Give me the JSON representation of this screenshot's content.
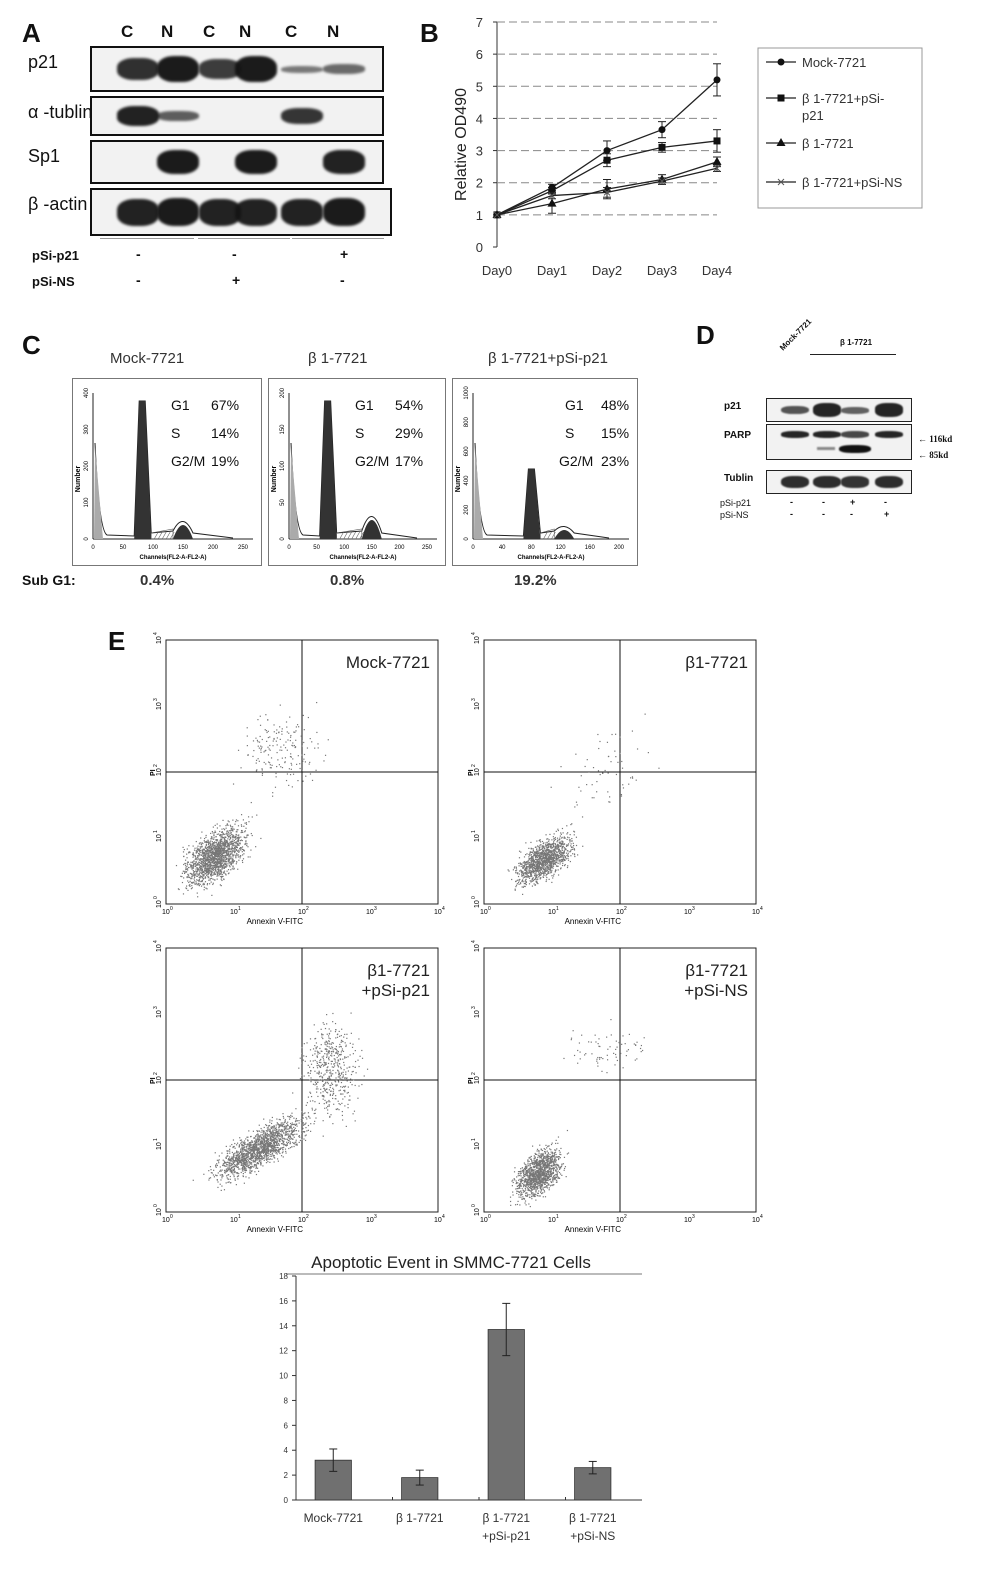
{
  "panelA": {
    "letter": "A",
    "lanes": [
      "C",
      "N",
      "C",
      "N",
      "C",
      "N"
    ],
    "rows": [
      {
        "label": "p21",
        "bands": [
          0.8,
          0.95,
          0.7,
          0.95,
          0.25,
          0.35
        ]
      },
      {
        "label": "α -tublin",
        "bands": [
          0.9,
          0.45,
          0,
          0,
          0.75,
          0
        ]
      },
      {
        "label": "Sp1",
        "bands": [
          0,
          0.95,
          0,
          0.95,
          0,
          0.9
        ]
      },
      {
        "label": "β -actin",
        "bands": [
          0.9,
          0.95,
          0.9,
          0.9,
          0.9,
          0.95
        ]
      }
    ],
    "treatments": [
      {
        "label": "pSi-p21",
        "marks": [
          "-",
          "-",
          "+"
        ]
      },
      {
        "label": "pSi-NS",
        "marks": [
          "-",
          "+",
          "-"
        ]
      }
    ]
  },
  "panelB": {
    "letter": "B",
    "chart_data": {
      "type": "line",
      "categories": [
        "Day0",
        "Day1",
        "Day2",
        "Day3",
        "Day4"
      ],
      "ylabel": "Relative OD490",
      "ylim": [
        0,
        7
      ],
      "yticks": [
        "0",
        "1",
        "2",
        "3",
        "4",
        "5",
        "6",
        "7"
      ],
      "grid": true,
      "legend": "right",
      "series": [
        {
          "name": "Mock-7721",
          "marker": "circle",
          "values": [
            1.0,
            1.85,
            3.0,
            3.65,
            5.2
          ],
          "errors": [
            0,
            0.1,
            0.3,
            0.25,
            0.5
          ]
        },
        {
          "name": "β 1-7721+pSi-p21",
          "marker": "square",
          "values": [
            1.0,
            1.75,
            2.7,
            3.1,
            3.3
          ],
          "errors": [
            0,
            0.1,
            0.2,
            0.15,
            0.35
          ]
        },
        {
          "name": "β 1-7721",
          "marker": "triangle",
          "values": [
            1.0,
            1.35,
            1.8,
            2.1,
            2.65
          ],
          "errors": [
            0,
            0.3,
            0.3,
            0.15,
            0.15
          ]
        },
        {
          "name": "β 1-7721+pSi-NS",
          "marker": "cross",
          "values": [
            1.0,
            1.6,
            1.7,
            2.05,
            2.45
          ],
          "errors": [
            0,
            0.1,
            0.15,
            0.1,
            0.1
          ]
        }
      ]
    }
  },
  "panelC": {
    "letter": "C",
    "ylabel": "Number",
    "xlabel": "Channels(FL2-A-FL2-A)",
    "subg1_label": "Sub G1:",
    "histograms": [
      {
        "title": "Mock-7721",
        "g1": "67%",
        "s": "14%",
        "g2m": "19%",
        "subg1": "0.4%",
        "yticks": [
          "0",
          "100",
          "200",
          "300",
          "400"
        ],
        "xticks": [
          "0",
          "50",
          "100",
          "150",
          "200",
          "250"
        ],
        "g1_peak": 82,
        "g2_peak": 150
      },
      {
        "title": "β 1-7721",
        "g1": "54%",
        "s": "29%",
        "g2m": "17%",
        "subg1": "0.8%",
        "yticks": [
          "0",
          "50",
          "100",
          "150",
          "200"
        ],
        "xticks": [
          "0",
          "50",
          "100",
          "150",
          "200",
          "250"
        ],
        "g1_peak": 70,
        "g2_peak": 150
      },
      {
        "title": "β 1-7721+pSi-p21",
        "g1": "48%",
        "s": "15%",
        "g2m": "23%",
        "subg1": "19.2%",
        "yticks": [
          "0",
          "200",
          "400",
          "600",
          "800",
          "1000"
        ],
        "xticks": [
          "0",
          "40",
          "80",
          "120",
          "160",
          "200"
        ],
        "g1_peak": 40,
        "g2_peak": 20
      }
    ],
    "labels": {
      "g1": "G1",
      "s": "S",
      "g2m": "G2/M"
    }
  },
  "panelD": {
    "letter": "D",
    "lane_labels": [
      "Mock-7721",
      "β 1-7721"
    ],
    "rows": [
      {
        "label": "p21",
        "bands": [
          0.6,
          0.95,
          0.5,
          0.95
        ]
      },
      {
        "label": "PARP",
        "bands": [
          0.95,
          0.95,
          0.7,
          0.95
        ]
      },
      {
        "label": "Tublin",
        "bands": [
          0.9,
          0.9,
          0.85,
          0.9
        ]
      }
    ],
    "markers": [
      "116kd",
      "85kd"
    ],
    "treatments": [
      {
        "label": "pSi-p21",
        "marks": [
          "-",
          "-",
          "+",
          "-"
        ]
      },
      {
        "label": "pSi-NS",
        "marks": [
          "-",
          "-",
          "-",
          "+"
        ]
      }
    ]
  },
  "panelE": {
    "letter": "E",
    "xlabel": "Annexin V-FITC",
    "ylabel": "PI",
    "ticks": [
      "10",
      "10",
      "10",
      "10",
      "10"
    ],
    "tick_exp": [
      "0",
      "1",
      "2",
      "3",
      "4"
    ],
    "plots": [
      {
        "title1": "Mock-7721",
        "title2": "",
        "spread": "mock"
      },
      {
        "title1": "β1-7721",
        "title2": "",
        "spread": "b1"
      },
      {
        "title1": "β1-7721",
        "title2": "+pSi-p21",
        "spread": "psi"
      },
      {
        "title1": "β1-7721",
        "title2": "+pSi-NS",
        "spread": "ns"
      }
    ]
  },
  "apoptosis": {
    "chart_data": {
      "type": "bar",
      "title": "Apoptotic Event in SMMC-7721 Cells",
      "categories": [
        "Mock-7721",
        "β 1-7721",
        "β 1-7721 +pSi-p21",
        "β 1-7721 +pSi-NS"
      ],
      "category_lines": [
        [
          "Mock-7721"
        ],
        [
          "β 1-7721"
        ],
        [
          "β 1-7721",
          "+pSi-p21"
        ],
        [
          "β 1-7721",
          "+pSi-NS"
        ]
      ],
      "values": [
        3.2,
        1.8,
        13.7,
        2.6
      ],
      "errors": [
        0.9,
        0.6,
        2.1,
        0.5
      ],
      "ylim": [
        0,
        18
      ],
      "yticks": [
        "0",
        "2",
        "4",
        "6",
        "8",
        "10",
        "12",
        "14",
        "16",
        "18"
      ],
      "color": "#707070"
    }
  }
}
